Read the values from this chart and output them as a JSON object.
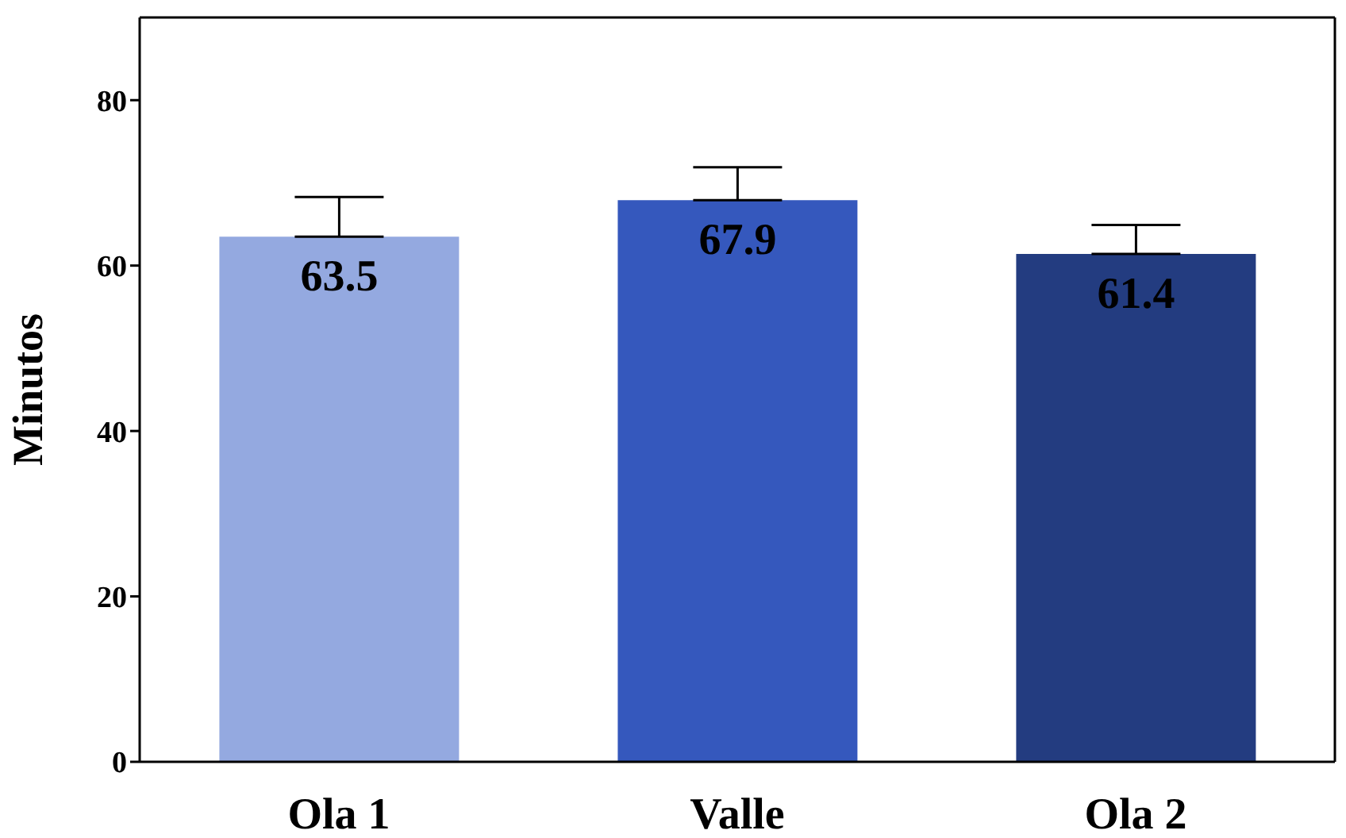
{
  "chart_data": {
    "type": "bar",
    "ylabel": "Minutos",
    "categories": [
      "Ola 1",
      "Valle",
      "Ola 2"
    ],
    "values": [
      63.5,
      67.9,
      61.4
    ],
    "colors": [
      "#94a9e0",
      "#3558bd",
      "#233c80"
    ],
    "errors": [
      [
        63.5,
        68.3
      ],
      [
        67.9,
        71.9
      ],
      [
        61.4,
        64.9
      ]
    ],
    "ylim": [
      0,
      90
    ],
    "yticks": [
      0,
      20,
      40,
      60,
      80
    ],
    "data_labels": true,
    "grid": false
  }
}
